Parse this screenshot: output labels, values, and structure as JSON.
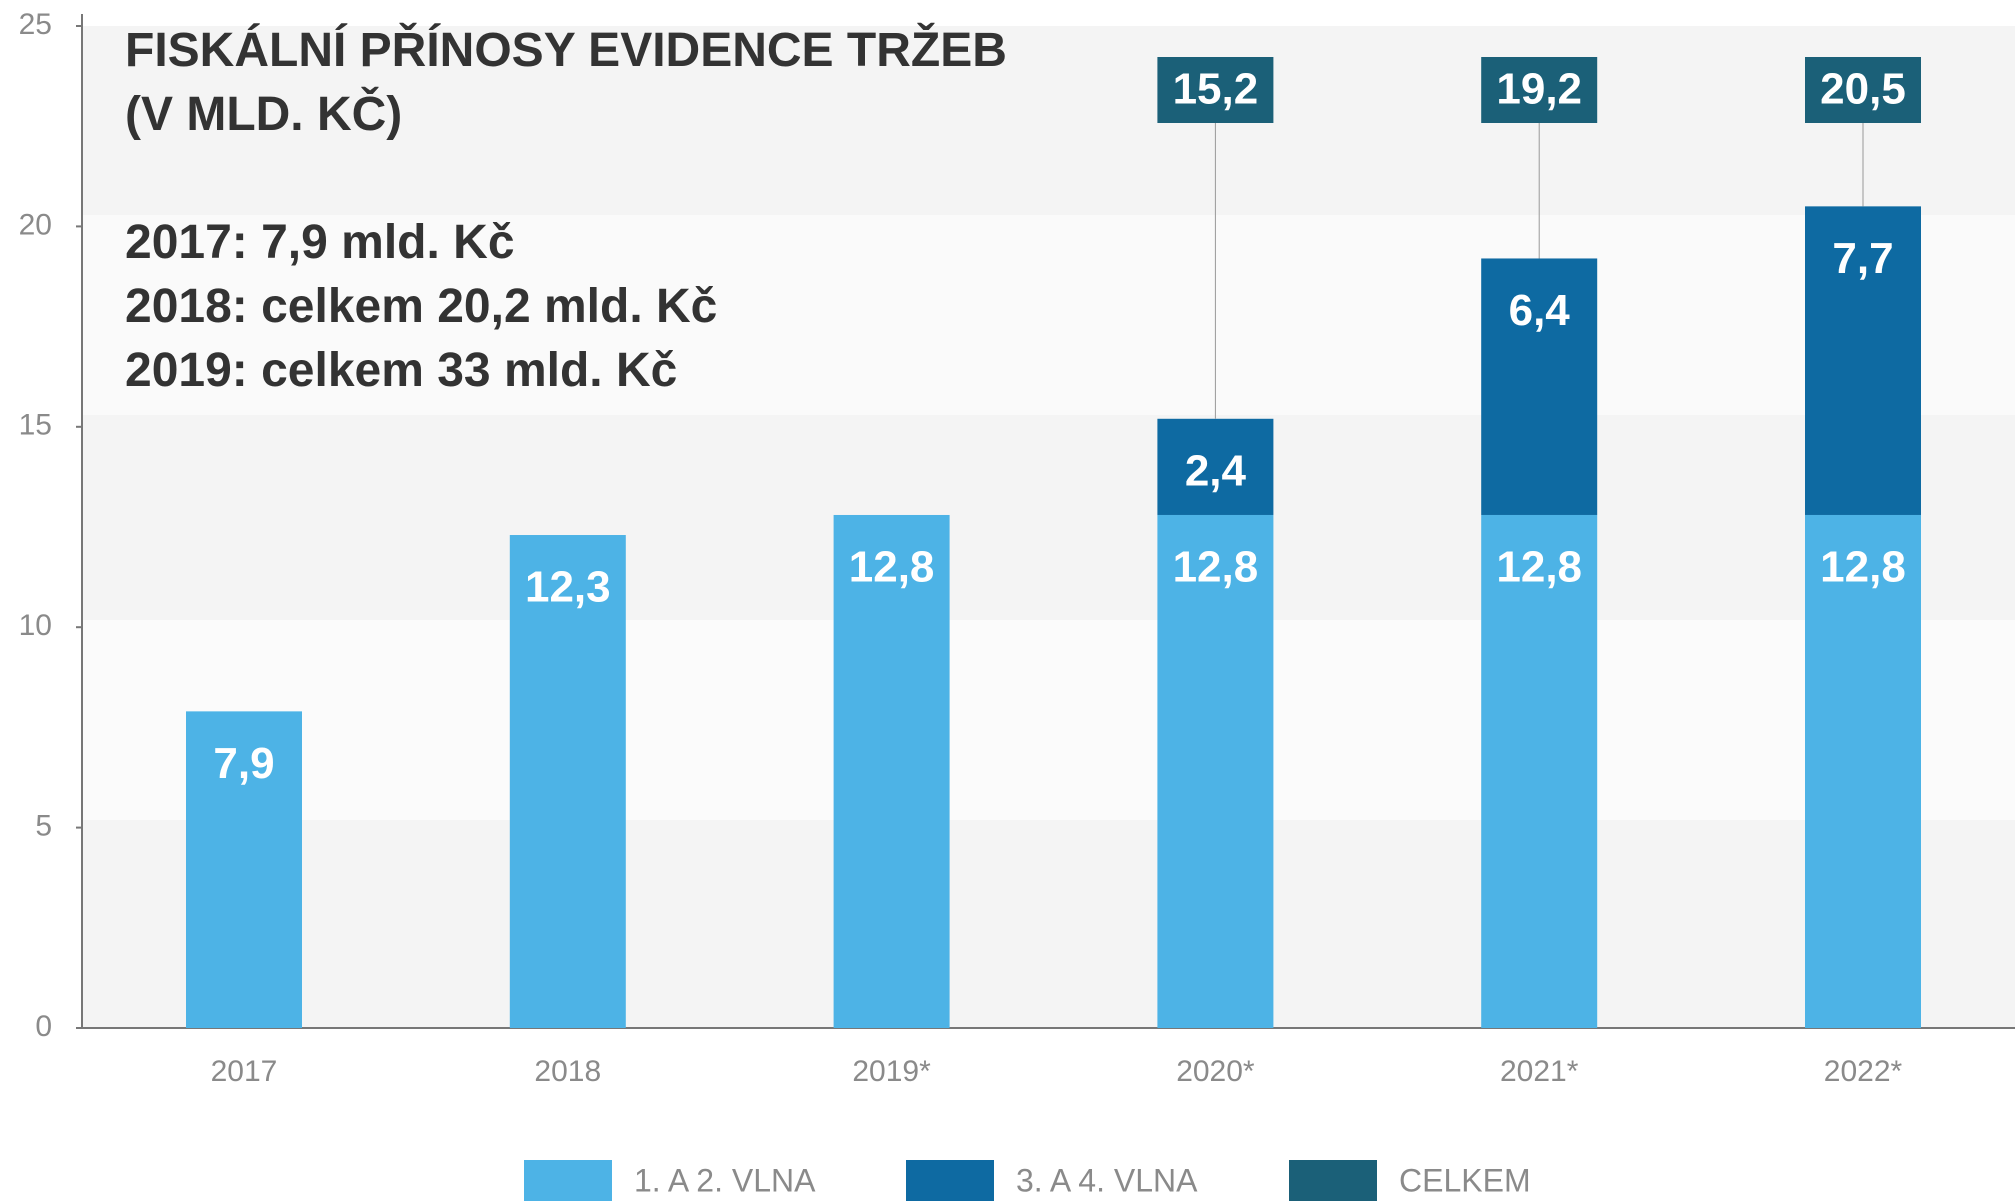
{
  "chart_data": {
    "type": "bar",
    "title": "FISKÁLNÍ PŘÍNOSY EVIDENCE TRŽEB",
    "subtitle": "(V MLD. KČ)",
    "annotations": [
      "2017: 7,9 mld. Kč",
      "2018: celkem 20,2 mld. Kč",
      "2019: celkem 33 mld. Kč"
    ],
    "categories": [
      "2017",
      "2018",
      "2019*",
      "2020*",
      "2021*",
      "2022*"
    ],
    "series": [
      {
        "name": "1. A 2. VLNA",
        "color": "#4db3e6",
        "values": [
          7.9,
          12.3,
          12.8,
          12.8,
          12.8,
          12.8
        ],
        "value_labels": [
          "7,9",
          "12,3",
          "12,8",
          "12,8",
          "12,8",
          "12,8"
        ]
      },
      {
        "name": "3. A 4. VLNA",
        "color": "#0e6aa2",
        "values": [
          null,
          null,
          null,
          2.4,
          6.4,
          7.7
        ],
        "value_labels": [
          null,
          null,
          null,
          "2,4",
          "6,4",
          "7,7"
        ]
      },
      {
        "name": "CELKEM",
        "color": "#1b6078",
        "stacked": false,
        "values": [
          null,
          null,
          null,
          15.2,
          19.2,
          20.5
        ],
        "value_labels": [
          null,
          null,
          null,
          "15,2",
          "19,2",
          "20,5"
        ]
      }
    ],
    "ylim": [
      0,
      25
    ],
    "yticks": [
      0,
      5,
      10,
      15,
      20,
      25
    ],
    "grid": false
  }
}
